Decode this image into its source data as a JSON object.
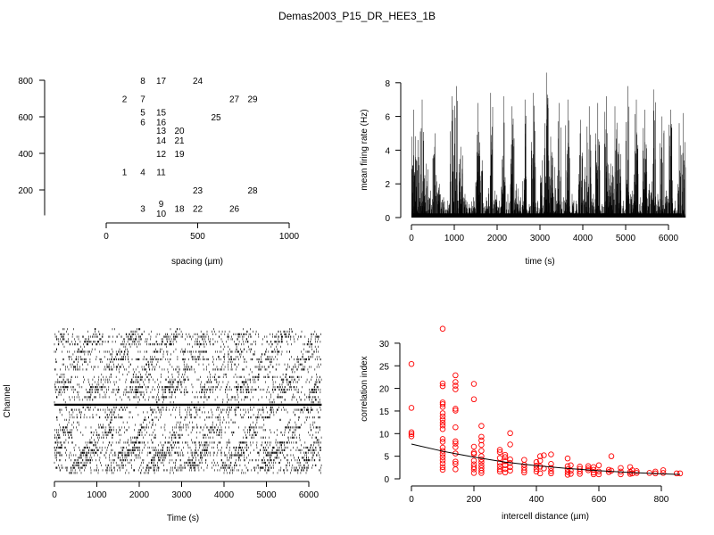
{
  "title": "Demas2003_P15_DR_HEE3_1B",
  "chart_data": [
    {
      "type": "scatter",
      "panel": "electrode-layout",
      "xlabel": "spacing (µm)",
      "ylabel": "",
      "xlim": [
        0,
        1000
      ],
      "ylim": [
        100,
        800
      ],
      "xticks": [
        0,
        500,
        1000
      ],
      "yticks": [
        200,
        400,
        600,
        800
      ],
      "labels": [
        {
          "t": "1",
          "x": 100,
          "y": 300
        },
        {
          "t": "2",
          "x": 100,
          "y": 700
        },
        {
          "t": "3",
          "x": 200,
          "y": 100
        },
        {
          "t": "4",
          "x": 200,
          "y": 300
        },
        {
          "t": "5",
          "x": 200,
          "y": 600
        },
        {
          "t": "6",
          "x": 200,
          "y": 600
        },
        {
          "t": "7",
          "x": 200,
          "y": 700
        },
        {
          "t": "8",
          "x": 200,
          "y": 800
        },
        {
          "t": "9",
          "x": 300,
          "y": 100
        },
        {
          "t": "10",
          "x": 300,
          "y": 100
        },
        {
          "t": "11",
          "x": 300,
          "y": 300
        },
        {
          "t": "12",
          "x": 300,
          "y": 400
        },
        {
          "t": "13",
          "x": 300,
          "y": 500
        },
        {
          "t": "14",
          "x": 300,
          "y": 500
        },
        {
          "t": "15",
          "x": 300,
          "y": 600
        },
        {
          "t": "16",
          "x": 300,
          "y": 600
        },
        {
          "t": "17",
          "x": 300,
          "y": 800
        },
        {
          "t": "18",
          "x": 400,
          "y": 100
        },
        {
          "t": "19",
          "x": 400,
          "y": 400
        },
        {
          "t": "20",
          "x": 400,
          "y": 500
        },
        {
          "t": "21",
          "x": 400,
          "y": 500
        },
        {
          "t": "22",
          "x": 500,
          "y": 100
        },
        {
          "t": "23",
          "x": 500,
          "y": 200
        },
        {
          "t": "24",
          "x": 500,
          "y": 800
        },
        {
          "t": "25",
          "x": 600,
          "y": 600
        },
        {
          "t": "26",
          "x": 700,
          "y": 100
        },
        {
          "t": "27",
          "x": 700,
          "y": 700
        },
        {
          "t": "28",
          "x": 800,
          "y": 200
        },
        {
          "t": "29",
          "x": 800,
          "y": 700
        }
      ]
    },
    {
      "type": "line",
      "panel": "firing-rate",
      "xlabel": "time (s)",
      "ylabel": "mean firing rate (Hz)",
      "xlim": [
        0,
        6300
      ],
      "ylim": [
        0,
        8
      ],
      "xticks": [
        0,
        1000,
        2000,
        3000,
        4000,
        5000,
        6000
      ],
      "yticks": [
        0,
        2,
        4,
        6,
        8
      ],
      "bin_seconds": 100,
      "bin_peaks": [
        6.4,
        4.6,
        7.0,
        3.2,
        1.6,
        5.0,
        2.0,
        1.2,
        1.0,
        7.2,
        7.8,
        4.2,
        1.4,
        0.8,
        1.2,
        6.8,
        3.4,
        1.2,
        7.4,
        1.6,
        1.0,
        7.2,
        1.4,
        6.6,
        2.0,
        1.2,
        7.0,
        0.8,
        7.4,
        1.0,
        3.4,
        8.6,
        4.8,
        3.0,
        6.8,
        1.2,
        7.0,
        1.4,
        1.0,
        5.8,
        3.0,
        6.6,
        1.4,
        6.8,
        0.8,
        7.2,
        3.2,
        6.6,
        4.4,
        1.0,
        7.8,
        1.6,
        7.0,
        1.2,
        6.4,
        2.0,
        7.6,
        1.4,
        6.0,
        1.6,
        6.4,
        1.0,
        5.6,
        6.2
      ]
    },
    {
      "type": "raster",
      "panel": "spike-raster",
      "xlabel": "Time (s)",
      "ylabel": "Channel",
      "xlim": [
        0,
        6300
      ],
      "xticks": [
        0,
        1000,
        2000,
        3000,
        4000,
        5000,
        6000
      ]
    },
    {
      "type": "scatter",
      "panel": "correlation",
      "xlabel": "intercell distance (µm)",
      "ylabel": "correlation index",
      "xlim": [
        0,
        870
      ],
      "ylim": [
        0,
        33
      ],
      "xticks": [
        0,
        200,
        400,
        600,
        800
      ],
      "yticks": [
        0,
        5,
        10,
        15,
        20,
        25,
        30
      ],
      "point_color": "#ff0000",
      "points": [
        [
          0,
          25.4
        ],
        [
          0,
          15.7
        ],
        [
          0,
          10.3
        ],
        [
          0,
          9.9
        ],
        [
          0,
          9.4
        ],
        [
          100,
          33.2
        ],
        [
          100,
          21.1
        ],
        [
          100,
          20.5
        ],
        [
          100,
          16.9
        ],
        [
          100,
          16.5
        ],
        [
          100,
          15.9
        ],
        [
          100,
          14.5
        ],
        [
          100,
          13.8
        ],
        [
          100,
          13.1
        ],
        [
          100,
          12.4
        ],
        [
          100,
          11.8
        ],
        [
          100,
          11.0
        ],
        [
          100,
          8.8
        ],
        [
          100,
          8.2
        ],
        [
          100,
          6.9
        ],
        [
          100,
          6.2
        ],
        [
          100,
          5.5
        ],
        [
          100,
          4.8
        ],
        [
          100,
          4.1
        ],
        [
          100,
          3.4
        ],
        [
          100,
          2.6
        ],
        [
          100,
          2.0
        ],
        [
          141,
          22.9
        ],
        [
          141,
          21.4
        ],
        [
          141,
          20.6
        ],
        [
          141,
          19.8
        ],
        [
          141,
          15.5
        ],
        [
          141,
          15.1
        ],
        [
          141,
          11.4
        ],
        [
          141,
          8.3
        ],
        [
          141,
          7.8
        ],
        [
          141,
          7.0
        ],
        [
          141,
          5.6
        ],
        [
          141,
          3.8
        ],
        [
          141,
          3.3
        ],
        [
          141,
          2.1
        ],
        [
          200,
          21.0
        ],
        [
          200,
          17.6
        ],
        [
          200,
          7.1
        ],
        [
          200,
          5.8
        ],
        [
          200,
          5.5
        ],
        [
          200,
          4.0
        ],
        [
          200,
          3.2
        ],
        [
          200,
          2.6
        ],
        [
          200,
          2.1
        ],
        [
          200,
          1.3
        ],
        [
          224,
          11.7
        ],
        [
          224,
          9.3
        ],
        [
          224,
          8.5
        ],
        [
          224,
          7.5
        ],
        [
          224,
          6.2
        ],
        [
          224,
          5.0
        ],
        [
          224,
          4.3
        ],
        [
          224,
          3.7
        ],
        [
          224,
          3.0
        ],
        [
          224,
          2.4
        ],
        [
          224,
          1.8
        ],
        [
          224,
          1.3
        ],
        [
          283,
          6.4
        ],
        [
          283,
          5.9
        ],
        [
          283,
          4.6
        ],
        [
          283,
          3.5
        ],
        [
          283,
          2.8
        ],
        [
          283,
          2.1
        ],
        [
          283,
          1.6
        ],
        [
          300,
          5.3
        ],
        [
          300,
          4.8
        ],
        [
          300,
          3.9
        ],
        [
          300,
          3.0
        ],
        [
          300,
          2.2
        ],
        [
          300,
          1.4
        ],
        [
          316,
          10.1
        ],
        [
          316,
          7.6
        ],
        [
          316,
          4.3
        ],
        [
          316,
          3.5
        ],
        [
          316,
          2.6
        ],
        [
          316,
          1.8
        ],
        [
          361,
          4.2
        ],
        [
          361,
          3.1
        ],
        [
          361,
          2.5
        ],
        [
          361,
          1.9
        ],
        [
          361,
          1.4
        ],
        [
          400,
          3.7
        ],
        [
          400,
          2.9
        ],
        [
          400,
          2.2
        ],
        [
          400,
          1.6
        ],
        [
          412,
          5.0
        ],
        [
          412,
          4.0
        ],
        [
          412,
          2.7
        ],
        [
          412,
          1.2
        ],
        [
          424,
          5.2
        ],
        [
          424,
          2.3
        ],
        [
          447,
          5.4
        ],
        [
          447,
          3.3
        ],
        [
          447,
          2.4
        ],
        [
          447,
          1.7
        ],
        [
          447,
          1.2
        ],
        [
          500,
          4.5
        ],
        [
          500,
          2.8
        ],
        [
          500,
          2.1
        ],
        [
          500,
          1.5
        ],
        [
          500,
          0.9
        ],
        [
          510,
          3.0
        ],
        [
          510,
          1.8
        ],
        [
          510,
          1.1
        ],
        [
          539,
          2.7
        ],
        [
          539,
          2.2
        ],
        [
          539,
          1.6
        ],
        [
          539,
          1.1
        ],
        [
          566,
          2.8
        ],
        [
          566,
          2.3
        ],
        [
          566,
          1.9
        ],
        [
          583,
          2.6
        ],
        [
          583,
          2.0
        ],
        [
          583,
          1.4
        ],
        [
          583,
          1.0
        ],
        [
          600,
          3.0
        ],
        [
          600,
          1.6
        ],
        [
          600,
          1.0
        ],
        [
          632,
          2.0
        ],
        [
          632,
          1.5
        ],
        [
          640,
          5.0
        ],
        [
          640,
          1.8
        ],
        [
          670,
          2.4
        ],
        [
          670,
          1.6
        ],
        [
          670,
          1.0
        ],
        [
          700,
          2.6
        ],
        [
          700,
          1.5
        ],
        [
          700,
          1.1
        ],
        [
          707,
          1.9
        ],
        [
          707,
          1.2
        ],
        [
          721,
          1.7
        ],
        [
          721,
          1.3
        ],
        [
          762,
          1.3
        ],
        [
          781,
          1.6
        ],
        [
          781,
          1.2
        ],
        [
          806,
          1.9
        ],
        [
          806,
          1.3
        ],
        [
          849,
          1.2
        ],
        [
          860,
          1.2
        ]
      ],
      "fit_line": [
        [
          0,
          7.7
        ],
        [
          100,
          6.1
        ],
        [
          200,
          4.8
        ],
        [
          300,
          3.7
        ],
        [
          400,
          2.9
        ],
        [
          500,
          2.3
        ],
        [
          600,
          1.8
        ],
        [
          700,
          1.4
        ],
        [
          800,
          1.1
        ],
        [
          860,
          0.95
        ]
      ]
    }
  ]
}
